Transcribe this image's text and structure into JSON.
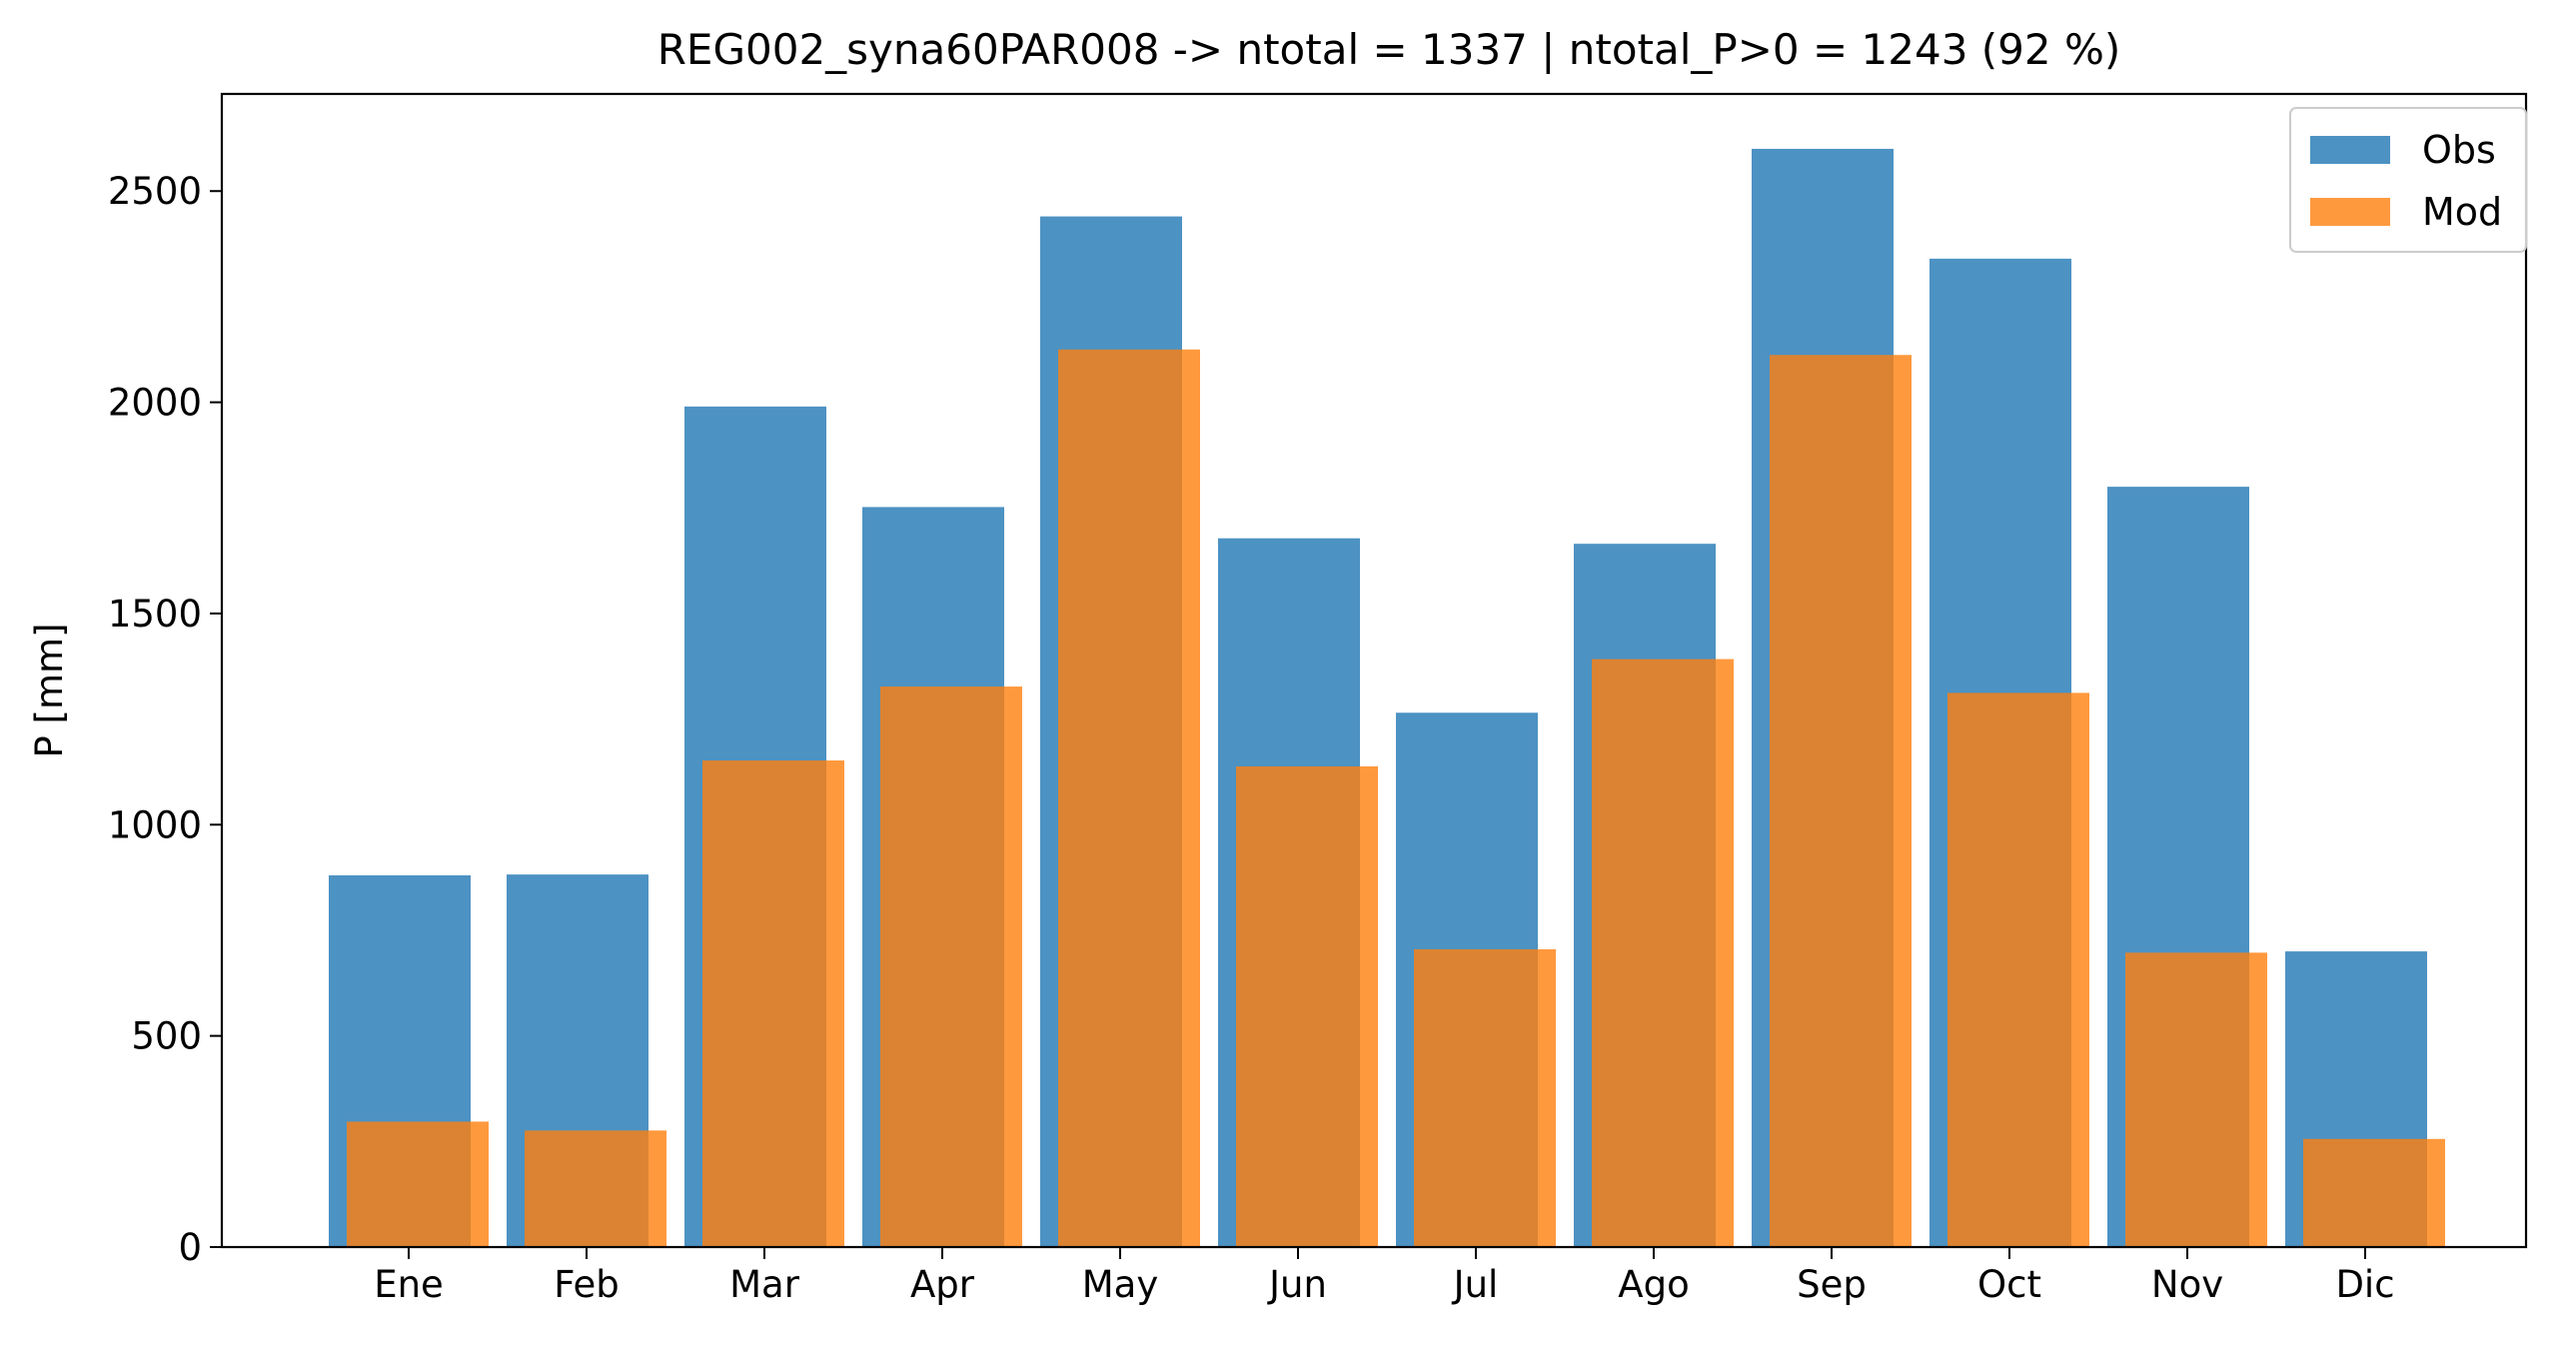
{
  "chart_data": {
    "type": "bar",
    "title": "REG002_syna60PAR008 -> ntotal = 1337 | ntotal_P>0 = 1243 (92 %)",
    "xlabel": "",
    "ylabel": "P [mm]",
    "ylim": [
      0,
      2730
    ],
    "yticks": [
      0,
      500,
      1000,
      1500,
      2000,
      2500
    ],
    "grid": false,
    "legend_position": "top-right",
    "categories": [
      "Ene",
      "Feb",
      "Mar",
      "Apr",
      "May",
      "Jun",
      "Jul",
      "Ago",
      "Sep",
      "Oct",
      "Nov",
      "Dic"
    ],
    "series": [
      {
        "name": "Obs",
        "color": "#1f77b4",
        "values": [
          880,
          882,
          1990,
          1752,
          2440,
          1678,
          1265,
          1665,
          2600,
          2340,
          1800,
          700
        ]
      },
      {
        "name": "Mod",
        "color": "#ff7f0e",
        "values": [
          297,
          276,
          1152,
          1327,
          2125,
          1138,
          705,
          1392,
          2112,
          1312,
          697,
          256
        ]
      }
    ]
  }
}
